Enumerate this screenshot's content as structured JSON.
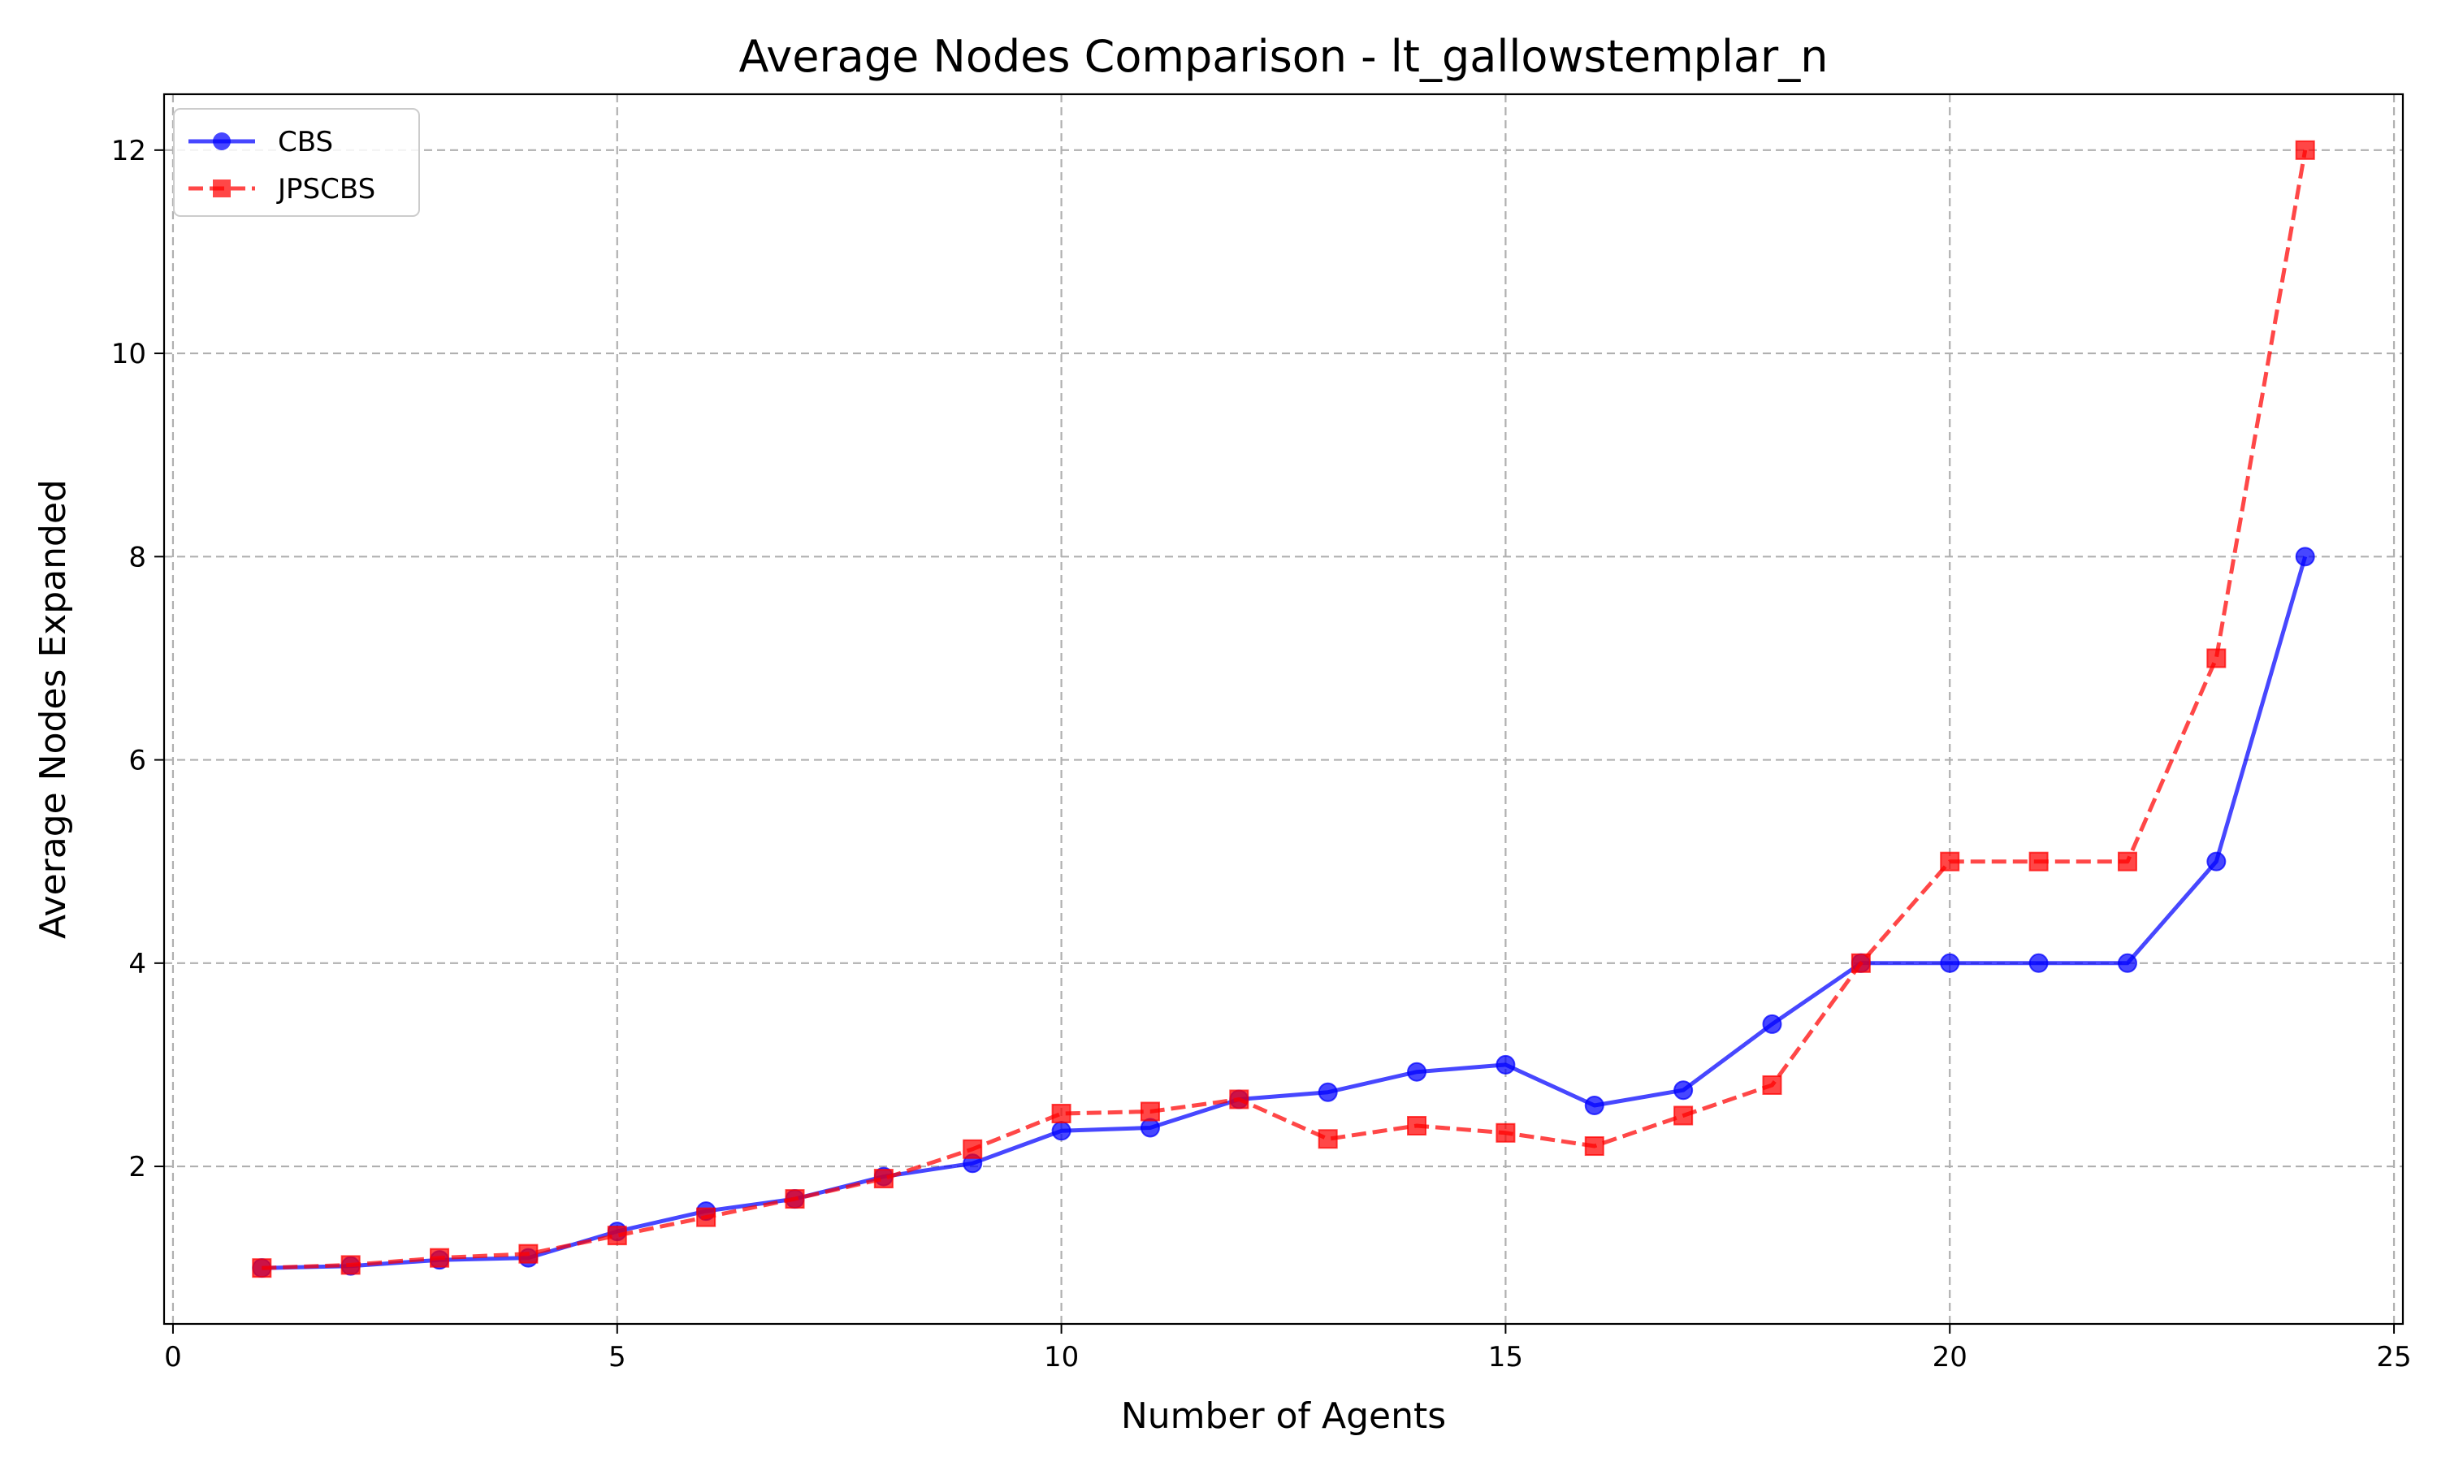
{
  "chart_data": {
    "type": "line",
    "title": "Average Nodes Comparison - lt_gallowstemplar_n",
    "xlabel": "Number of Agents",
    "ylabel": "Average Nodes Expanded",
    "xlim": [
      -0.1,
      25.1
    ],
    "ylim": [
      0.45,
      12.55
    ],
    "xticks": [
      0,
      5,
      10,
      15,
      20,
      25
    ],
    "yticks": [
      2,
      4,
      6,
      8,
      10,
      12
    ],
    "grid": true,
    "legend": "top-left",
    "x": [
      1,
      2,
      3,
      4,
      5,
      6,
      7,
      8,
      9,
      10,
      11,
      12,
      13,
      14,
      15,
      16,
      17,
      18,
      19,
      20,
      21,
      22,
      23,
      24
    ],
    "series": [
      {
        "name": "CBS",
        "color": "#0000ff",
        "marker": "circle",
        "linestyle": "solid",
        "values": [
          1.0,
          1.02,
          1.08,
          1.1,
          1.36,
          1.56,
          1.68,
          1.9,
          2.03,
          2.35,
          2.38,
          2.66,
          2.73,
          2.93,
          3.0,
          2.6,
          2.75,
          3.4,
          4.0,
          4.0,
          4.0,
          4.0,
          5.0,
          8.0
        ]
      },
      {
        "name": "JPSCBS",
        "color": "#ff0000",
        "marker": "square",
        "linestyle": "dashed",
        "values": [
          1.0,
          1.03,
          1.1,
          1.14,
          1.32,
          1.5,
          1.68,
          1.88,
          2.17,
          2.52,
          2.54,
          2.66,
          2.27,
          2.4,
          2.33,
          2.2,
          2.5,
          2.8,
          4.0,
          5.0,
          5.0,
          5.0,
          7.0,
          12.0
        ]
      }
    ]
  }
}
